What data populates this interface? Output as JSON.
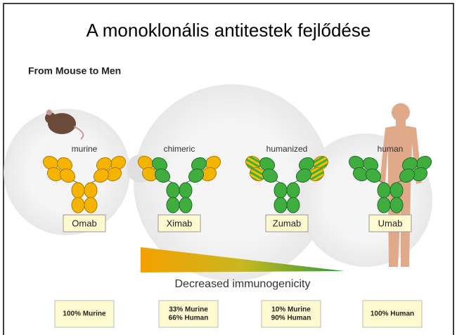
{
  "header": {
    "title": "A monoklonális antitestek fejlődése",
    "subtitle": "From Mouse to Men"
  },
  "columns": [
    {
      "label": "murine",
      "name": "Omab",
      "composition": [
        "100% Murine"
      ]
    },
    {
      "label": "chimeric",
      "name": "Ximab",
      "composition": [
        "33% Murine",
        "66% Human"
      ]
    },
    {
      "label": "humanized",
      "name": "Zumab",
      "composition": [
        "10% Murine",
        "90% Human"
      ]
    },
    {
      "label": "human",
      "name": "Umab",
      "composition": [
        "100% Human"
      ]
    }
  ],
  "arrow": {
    "label": "Decreased immunogenicity"
  }
}
